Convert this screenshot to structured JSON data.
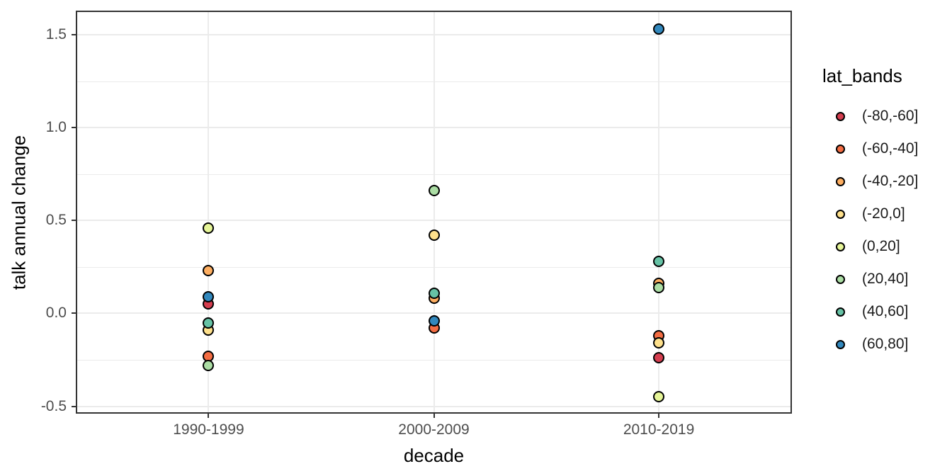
{
  "chart_data": {
    "type": "scatter",
    "title": "",
    "xlabel": "decade",
    "ylabel": "talk annual change",
    "categories": [
      "1990-1999",
      "2000-2009",
      "2010-2019"
    ],
    "y_ticks": [
      {
        "value": -0.5,
        "label": "-0.5"
      },
      {
        "value": 0.0,
        "label": "0.0"
      },
      {
        "value": 0.5,
        "label": "0.5"
      },
      {
        "value": 1.0,
        "label": "1.0"
      },
      {
        "value": 1.5,
        "label": "1.5"
      }
    ],
    "ylim": [
      -0.54,
      1.63
    ],
    "grid": true,
    "legend_position": "right",
    "legend_title": "lat_bands",
    "colors": {
      "panel_background": "#ffffff",
      "grid": "#ebebeb",
      "panel_border": "#333333",
      "tick_label": "#4d4d4d",
      "axis_title": "#000000",
      "point_outline": "#000000"
    },
    "series": [
      {
        "name": "(-80,-60]",
        "color": "#d53e4f",
        "points": [
          {
            "decade": "1990-1999",
            "value": 0.05
          },
          {
            "decade": "2010-2019",
            "value": -0.24
          }
        ]
      },
      {
        "name": "(-60,-40]",
        "color": "#f46d43",
        "points": [
          {
            "decade": "1990-1999",
            "value": -0.23
          },
          {
            "decade": "2000-2009",
            "value": -0.08
          },
          {
            "decade": "2010-2019",
            "value": -0.12
          }
        ]
      },
      {
        "name": "(-40,-20]",
        "color": "#fdae61",
        "points": [
          {
            "decade": "1990-1999",
            "value": 0.23
          },
          {
            "decade": "2000-2009",
            "value": 0.08
          },
          {
            "decade": "2010-2019",
            "value": 0.16
          }
        ]
      },
      {
        "name": "(-20,0]",
        "color": "#fee08b",
        "points": [
          {
            "decade": "1990-1999",
            "value": -0.09
          },
          {
            "decade": "2000-2009",
            "value": 0.42
          },
          {
            "decade": "2010-2019",
            "value": -0.16
          }
        ]
      },
      {
        "name": "(0,20]",
        "color": "#e6f598",
        "points": [
          {
            "decade": "1990-1999",
            "value": 0.46
          },
          {
            "decade": "2010-2019",
            "value": -0.45
          }
        ]
      },
      {
        "name": "(20,40]",
        "color": "#abdda4",
        "points": [
          {
            "decade": "1990-1999",
            "value": -0.28
          },
          {
            "decade": "2000-2009",
            "value": 0.66
          },
          {
            "decade": "2010-2019",
            "value": 0.14
          }
        ]
      },
      {
        "name": "(40,60]",
        "color": "#66c2a5",
        "points": [
          {
            "decade": "1990-1999",
            "value": -0.05
          },
          {
            "decade": "2000-2009",
            "value": 0.11
          },
          {
            "decade": "2010-2019",
            "value": 0.28
          }
        ]
      },
      {
        "name": "(60,80]",
        "color": "#3288bd",
        "points": [
          {
            "decade": "1990-1999",
            "value": 0.09
          },
          {
            "decade": "2000-2009",
            "value": -0.04
          },
          {
            "decade": "2010-2019",
            "value": 1.53
          }
        ]
      }
    ]
  }
}
